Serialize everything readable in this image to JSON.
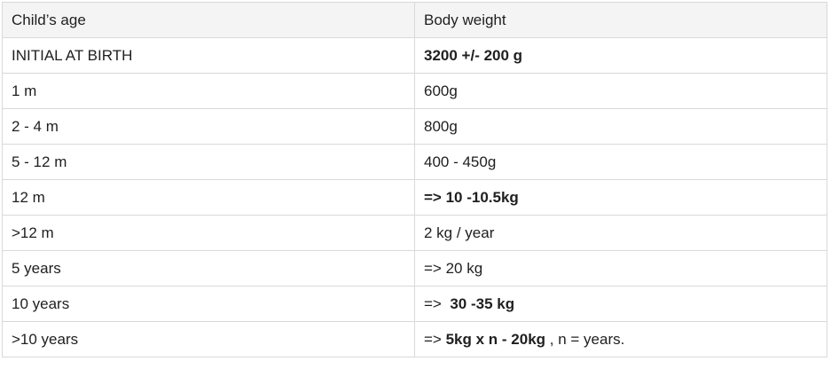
{
  "table": {
    "headers": [
      "Child’s age",
      "Body weight"
    ],
    "rows": [
      {
        "age": "INITIAL AT BIRTH",
        "weight_parts": [
          {
            "text": "3200 +/- 200 g",
            "bold": true
          }
        ]
      },
      {
        "age": "1 m",
        "weight_parts": [
          {
            "text": "600g",
            "bold": false
          }
        ]
      },
      {
        "age": "2 - 4 m",
        "weight_parts": [
          {
            "text": "800g",
            "bold": false
          }
        ]
      },
      {
        "age": "5 - 12 m",
        "weight_parts": [
          {
            "text": "400 - 450g",
            "bold": false
          }
        ]
      },
      {
        "age": "12 m",
        "weight_parts": [
          {
            "text": "=> 10 -10.5kg",
            "bold": true
          }
        ]
      },
      {
        "age": ">12 m",
        "weight_parts": [
          {
            "text": "2 kg / year",
            "bold": false
          }
        ]
      },
      {
        "age": "5 years",
        "weight_parts": [
          {
            "text": "=> 20 kg",
            "bold": false
          }
        ]
      },
      {
        "age": "10 years",
        "weight_parts": [
          {
            "text": "=> ",
            "bold": false
          },
          {
            "text": " 30 -35 kg",
            "bold": true
          }
        ]
      },
      {
        "age": ">10 years",
        "weight_parts": [
          {
            "text": "=> ",
            "bold": false
          },
          {
            "text": "5kg x n - 20kg",
            "bold": true
          },
          {
            "text": " , n = years.",
            "bold": false
          }
        ]
      }
    ]
  }
}
